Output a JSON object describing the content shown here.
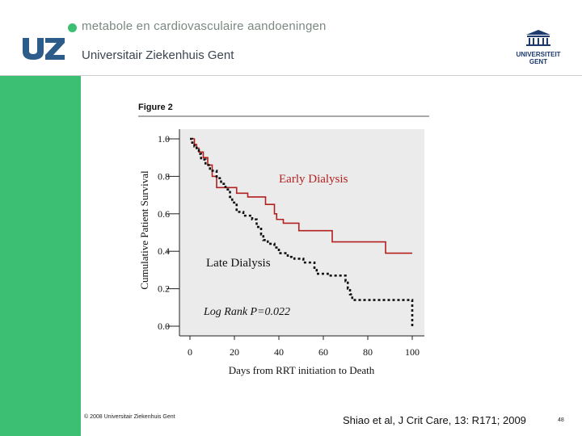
{
  "header": {
    "tagline": "metabole en cardiovasculaire aandoeningen",
    "org_name": "Universitair Ziekenhuis Gent",
    "logo_text": "UZ",
    "ugent_line1": "UNIVERSITEIT",
    "ugent_line2": "GENT",
    "accent_color": "#3dbf73",
    "logo_color": "#2e5c8a"
  },
  "chart_data": {
    "type": "line",
    "figure_label": "Figure 2",
    "title": "",
    "xlabel": "Days from RRT initiation to Death",
    "ylabel": "Cumulative Patient Survival",
    "xlim": [
      0,
      100
    ],
    "ylim": [
      0,
      1.0
    ],
    "xticks": [
      0,
      20,
      40,
      60,
      80,
      100
    ],
    "yticks": [
      0.0,
      0.2,
      0.4,
      0.6,
      0.8,
      1.0
    ],
    "ytick_labels": [
      "0.0",
      "0.2",
      "0.4",
      "0.6",
      "0.8",
      "1.0"
    ],
    "grid": false,
    "series": [
      {
        "name": "Early Dialysis",
        "style": "step-solid",
        "color": "#b22020",
        "x": [
          0,
          2,
          3,
          4,
          6,
          8,
          10,
          12,
          21,
          26,
          34,
          38,
          39,
          42,
          49,
          64,
          88,
          100
        ],
        "y": [
          1.0,
          0.97,
          0.95,
          0.93,
          0.9,
          0.86,
          0.8,
          0.74,
          0.71,
          0.69,
          0.65,
          0.6,
          0.57,
          0.55,
          0.51,
          0.45,
          0.39,
          0.39
        ]
      },
      {
        "name": "Late Dialysis",
        "style": "step-dotted",
        "color": "#111111",
        "x": [
          0,
          1,
          2,
          3,
          4,
          5,
          7,
          9,
          12,
          14,
          16,
          18,
          19,
          21,
          24,
          28,
          30,
          32,
          33,
          35,
          38,
          40,
          44,
          47,
          51,
          56,
          57,
          62,
          70,
          71,
          72,
          73,
          74,
          100
        ],
        "y": [
          1.0,
          0.98,
          0.96,
          0.94,
          0.92,
          0.89,
          0.86,
          0.83,
          0.79,
          0.76,
          0.73,
          0.69,
          0.66,
          0.61,
          0.59,
          0.57,
          0.53,
          0.49,
          0.46,
          0.44,
          0.42,
          0.39,
          0.37,
          0.36,
          0.34,
          0.3,
          0.28,
          0.27,
          0.24,
          0.2,
          0.17,
          0.14,
          0.14,
          0.0
        ]
      }
    ],
    "annotations": {
      "early_label": "Early Dialysis",
      "late_label": "Late Dialysis",
      "logrank": "Log Rank P=0.022"
    }
  },
  "footer": {
    "copyright": "© 2008 Universitair Ziekenhuis Gent",
    "citation": "Shiao et al, J Crit Care, 13: R171; 2009",
    "page_number": "48"
  }
}
